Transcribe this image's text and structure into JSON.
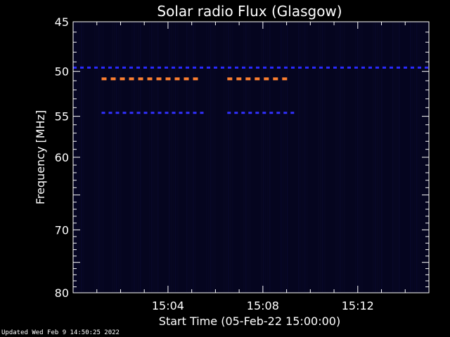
{
  "chart_data": {
    "type": "heatmap",
    "title": "Solar radio Flux (Glasgow)",
    "xlabel": "Start Time (05-Feb-22 15:00:00)",
    "ylabel": "Frequency [MHz]",
    "x_unit": "minutes after 15:00:00",
    "xlim": [
      0,
      15
    ],
    "ylim": [
      45,
      80
    ],
    "y_scale": "log",
    "x_ticks": [
      {
        "value": 4,
        "label": "15:04"
      },
      {
        "value": 8,
        "label": "15:08"
      },
      {
        "value": 12,
        "label": "15:12"
      }
    ],
    "y_ticks": [
      {
        "value": 45,
        "label": "45"
      },
      {
        "value": 50,
        "label": "50"
      },
      {
        "value": 55,
        "label": "55"
      },
      {
        "value": 60,
        "label": "60"
      },
      {
        "value": 70,
        "label": "70"
      },
      {
        "value": 80,
        "label": "80"
      }
    ],
    "background_color": "#05051f",
    "emission_bands": [
      {
        "freq_mhz": 49.6,
        "x_start": 0,
        "x_end": 15,
        "color": "#2a2aff",
        "intensity": "medium"
      },
      {
        "freq_mhz": 50.8,
        "x_start": 1.2,
        "x_end": 5.5,
        "color": "#ff8030",
        "intensity": "high"
      },
      {
        "freq_mhz": 50.8,
        "x_start": 6.5,
        "x_end": 9.3,
        "color": "#ff8030",
        "intensity": "high"
      },
      {
        "freq_mhz": 54.6,
        "x_start": 1.2,
        "x_end": 5.5,
        "color": "#3030ff",
        "intensity": "medium"
      },
      {
        "freq_mhz": 54.6,
        "x_start": 6.5,
        "x_end": 9.3,
        "color": "#3030ff",
        "intensity": "medium"
      }
    ]
  },
  "footer": {
    "updated": "Updated Wed Feb  9 14:50:25 2022"
  }
}
